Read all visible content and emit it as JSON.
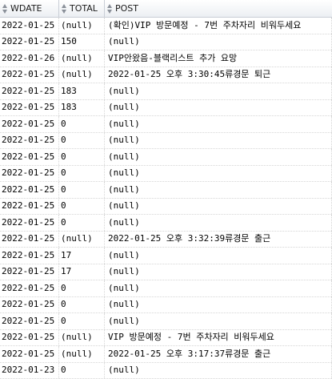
{
  "columns": {
    "wdate": "WDATE",
    "total": "TOTAL",
    "post": "POST"
  },
  "rows": [
    {
      "wdate": "2022-01-25",
      "total": "(null)",
      "post": "(확인)VIP 방문예정 - 7번 주차자리 비워두세요"
    },
    {
      "wdate": "2022-01-25",
      "total": "150",
      "post": "(null)"
    },
    {
      "wdate": "2022-01-26",
      "total": "(null)",
      "post": "VIP안왔음-블랙리스트 추가 요망"
    },
    {
      "wdate": "2022-01-25",
      "total": "(null)",
      "post": "2022-01-25 오후 3:30:45류경문 퇴근"
    },
    {
      "wdate": "2022-01-25",
      "total": "183",
      "post": "(null)"
    },
    {
      "wdate": "2022-01-25",
      "total": "183",
      "post": "(null)"
    },
    {
      "wdate": "2022-01-25",
      "total": "0",
      "post": "(null)"
    },
    {
      "wdate": "2022-01-25",
      "total": "0",
      "post": "(null)"
    },
    {
      "wdate": "2022-01-25",
      "total": "0",
      "post": "(null)"
    },
    {
      "wdate": "2022-01-25",
      "total": "0",
      "post": "(null)"
    },
    {
      "wdate": "2022-01-25",
      "total": "0",
      "post": "(null)"
    },
    {
      "wdate": "2022-01-25",
      "total": "0",
      "post": "(null)"
    },
    {
      "wdate": "2022-01-25",
      "total": "0",
      "post": "(null)"
    },
    {
      "wdate": "2022-01-25",
      "total": "(null)",
      "post": "2022-01-25 오후 3:32:39류경문 출근"
    },
    {
      "wdate": "2022-01-25",
      "total": "17",
      "post": "(null)"
    },
    {
      "wdate": "2022-01-25",
      "total": "17",
      "post": "(null)"
    },
    {
      "wdate": "2022-01-25",
      "total": "0",
      "post": "(null)"
    },
    {
      "wdate": "2022-01-25",
      "total": "0",
      "post": "(null)"
    },
    {
      "wdate": "2022-01-25",
      "total": "0",
      "post": "(null)"
    },
    {
      "wdate": "2022-01-25",
      "total": "(null)",
      "post": "VIP 방문예정 - 7번 주차자리 비워두세요"
    },
    {
      "wdate": "2022-01-25",
      "total": "(null)",
      "post": "2022-01-25 오후 3:17:37류경문 출근"
    },
    {
      "wdate": "2022-01-23",
      "total": "0",
      "post": "(null)"
    }
  ]
}
